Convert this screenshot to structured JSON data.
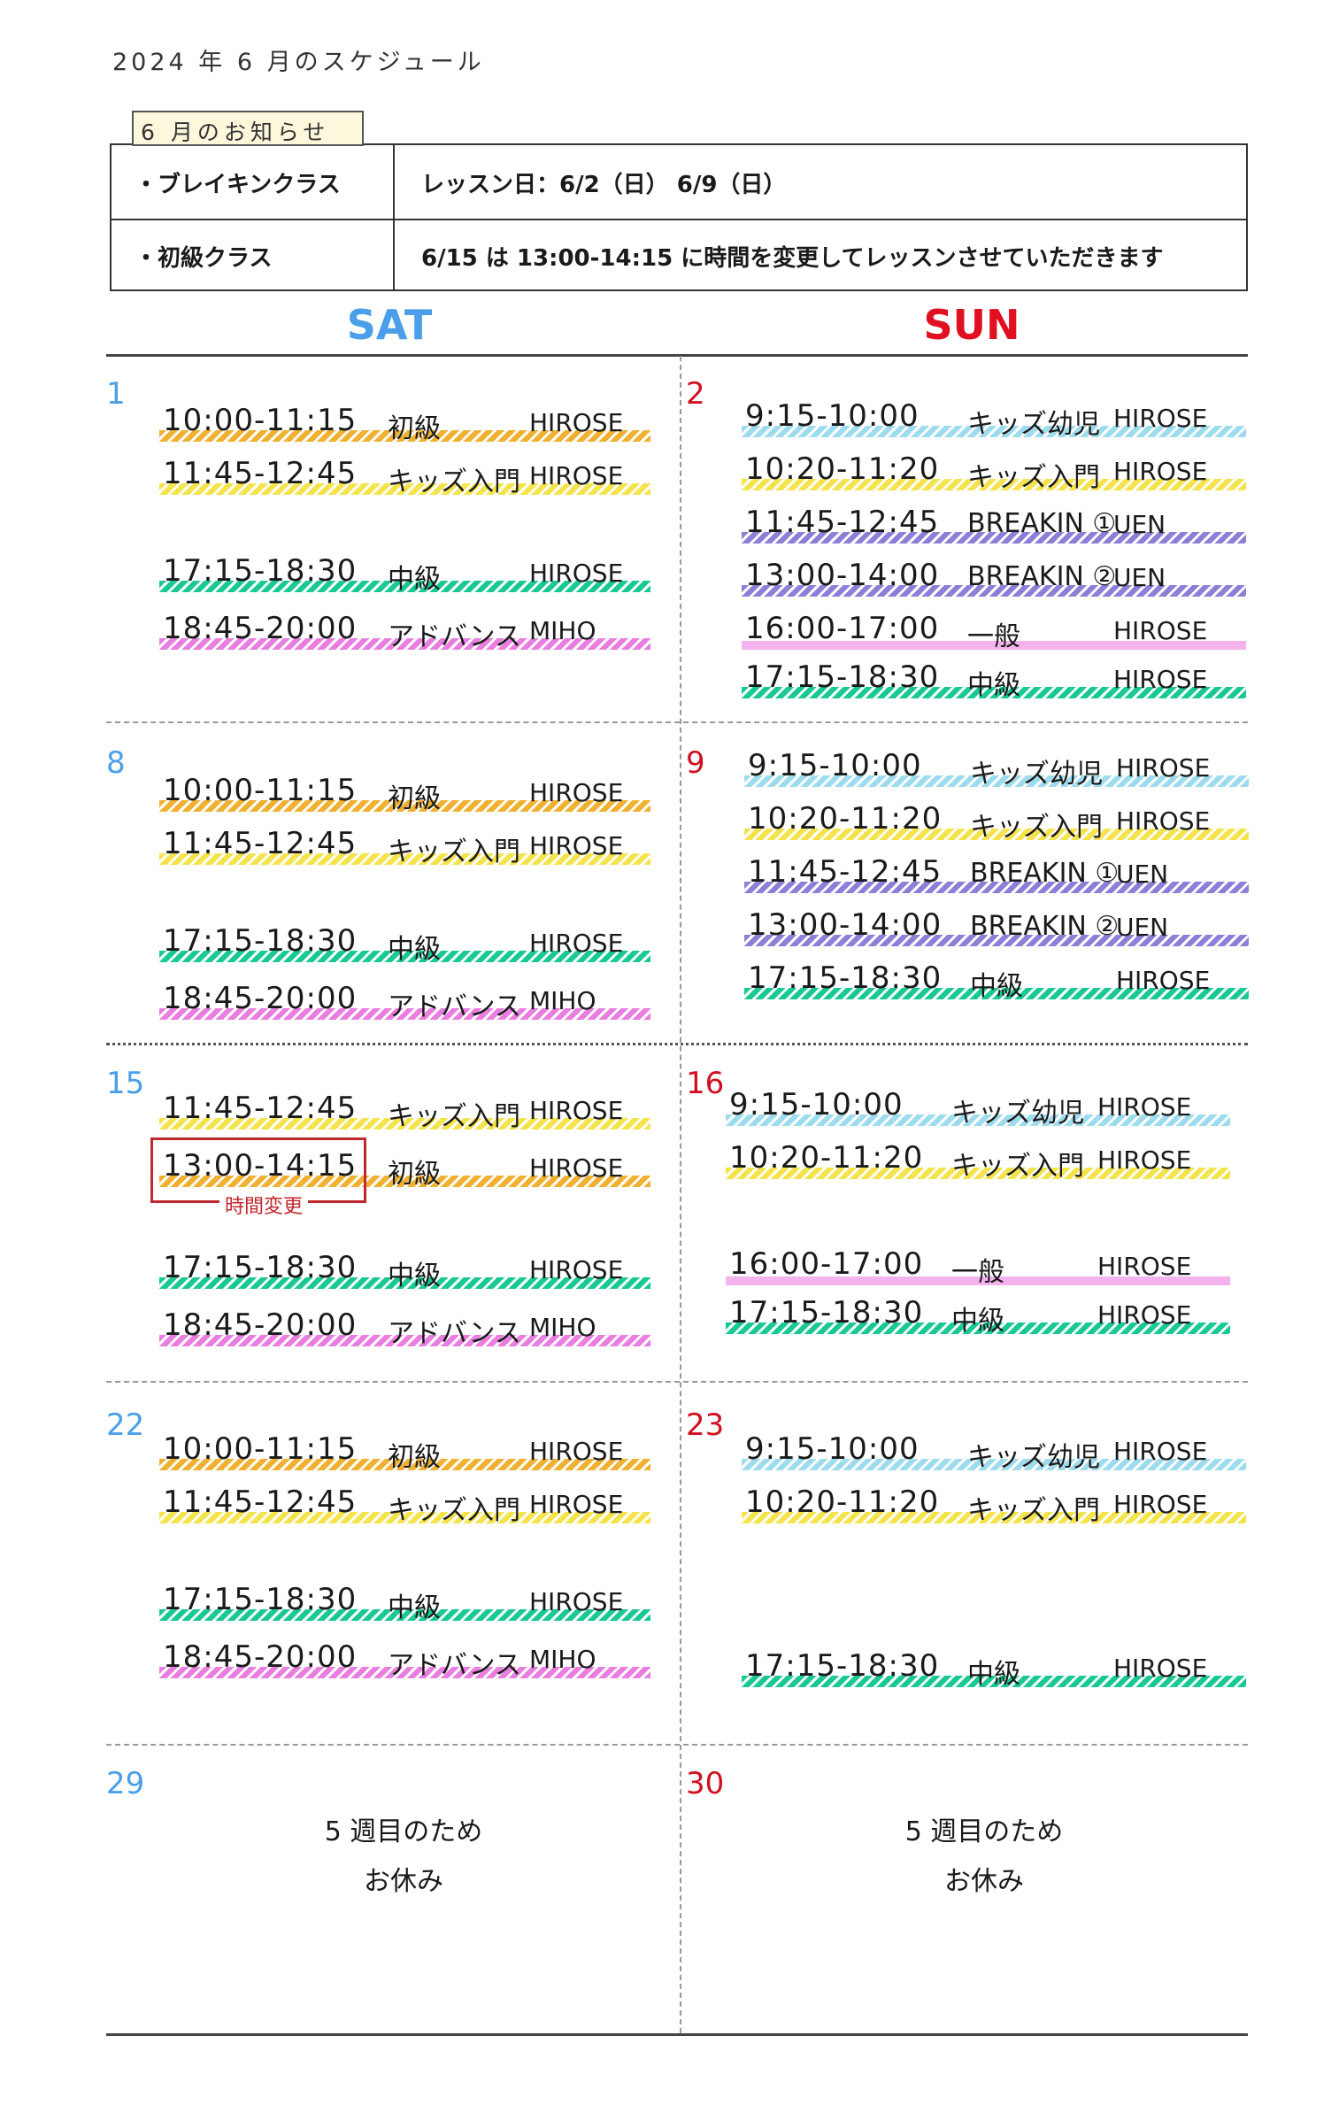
{
  "title": "2024 年 6 月のスケジュール",
  "notice": {
    "tab": "6 月のお知らせ",
    "rows": [
      {
        "label": "・ブレイキンクラス",
        "text": "レッスン日：6/2（日） 6/9（日）"
      },
      {
        "label": "・初級クラス",
        "text": "6/15 は 13:00-14:15 に時間を変更してレッスンさせていただきます"
      }
    ]
  },
  "headers": {
    "sat": "SAT",
    "sun": "SUN"
  },
  "colors": {
    "初級": "#f0b030",
    "キッズ入門": "#f5e34c",
    "中級": "#19c994",
    "アドバンス": "#e97de0",
    "キッズ幼児": "#9ddcef",
    "BREAKIN": "#8b7fd8",
    "一般": "#f2a6ec",
    "sat": "#4a9fe8",
    "sun": "#e01020",
    "change": "#c0282d"
  },
  "change_note": "時間変更",
  "weeks": [
    {
      "sat": {
        "day": "1",
        "lessons": [
          {
            "time": "10:00-11:15",
            "cls": "初級",
            "instructor": "HIROSE"
          },
          {
            "time": "11:45-12:45",
            "cls": "キッズ入門",
            "instructor": "HIROSE"
          },
          {
            "time": "17:15-18:30",
            "cls": "中級",
            "instructor": "HIROSE"
          },
          {
            "time": "18:45-20:00",
            "cls": "アドバンス",
            "instructor": "MIHO"
          }
        ]
      },
      "sun": {
        "day": "2",
        "lessons": [
          {
            "time": "9:15-10:00",
            "cls": "キッズ幼児",
            "instructor": "HIROSE"
          },
          {
            "time": "10:20-11:20",
            "cls": "キッズ入門",
            "instructor": "HIROSE"
          },
          {
            "time": "11:45-12:45",
            "cls": "BREAKIN ①",
            "instructor": "UEN"
          },
          {
            "time": "13:00-14:00",
            "cls": "BREAKIN ②",
            "instructor": "UEN"
          },
          {
            "time": "16:00-17:00",
            "cls": "一般",
            "instructor": "HIROSE"
          },
          {
            "time": "17:15-18:30",
            "cls": "中級",
            "instructor": "HIROSE"
          }
        ]
      }
    },
    {
      "sat": {
        "day": "8",
        "lessons": [
          {
            "time": "10:00-11:15",
            "cls": "初級",
            "instructor": "HIROSE"
          },
          {
            "time": "11:45-12:45",
            "cls": "キッズ入門",
            "instructor": "HIROSE"
          },
          {
            "time": "17:15-18:30",
            "cls": "中級",
            "instructor": "HIROSE"
          },
          {
            "time": "18:45-20:00",
            "cls": "アドバンス",
            "instructor": "MIHO"
          }
        ]
      },
      "sun": {
        "day": "9",
        "lessons": [
          {
            "time": "9:15-10:00",
            "cls": "キッズ幼児",
            "instructor": "HIROSE"
          },
          {
            "time": "10:20-11:20",
            "cls": "キッズ入門",
            "instructor": "HIROSE"
          },
          {
            "time": "11:45-12:45",
            "cls": "BREAKIN ①",
            "instructor": "UEN"
          },
          {
            "time": "13:00-14:00",
            "cls": "BREAKIN ②",
            "instructor": "UEN"
          },
          {
            "time": "17:15-18:30",
            "cls": "中級",
            "instructor": "HIROSE"
          }
        ]
      }
    },
    {
      "sat": {
        "day": "15",
        "lessons": [
          {
            "time": "11:45-12:45",
            "cls": "キッズ入門",
            "instructor": "HIROSE"
          },
          {
            "time": "13:00-14:15",
            "cls": "初級",
            "instructor": "HIROSE"
          },
          {
            "time": "17:15-18:30",
            "cls": "中級",
            "instructor": "HIROSE"
          },
          {
            "time": "18:45-20:00",
            "cls": "アドバンス",
            "instructor": "MIHO"
          }
        ]
      },
      "sun": {
        "day": "16",
        "lessons": [
          {
            "time": "9:15-10:00",
            "cls": "キッズ幼児",
            "instructor": "HIROSE"
          },
          {
            "time": "10:20-11:20",
            "cls": "キッズ入門",
            "instructor": "HIROSE"
          },
          {
            "time": "16:00-17:00",
            "cls": "一般",
            "instructor": "HIROSE"
          },
          {
            "time": "17:15-18:30",
            "cls": "中級",
            "instructor": "HIROSE"
          }
        ]
      }
    },
    {
      "sat": {
        "day": "22",
        "lessons": [
          {
            "time": "10:00-11:15",
            "cls": "初級",
            "instructor": "HIROSE"
          },
          {
            "time": "11:45-12:45",
            "cls": "キッズ入門",
            "instructor": "HIROSE"
          },
          {
            "time": "17:15-18:30",
            "cls": "中級",
            "instructor": "HIROSE"
          },
          {
            "time": "18:45-20:00",
            "cls": "アドバンス",
            "instructor": "MIHO"
          }
        ]
      },
      "sun": {
        "day": "23",
        "lessons": [
          {
            "time": "9:15-10:00",
            "cls": "キッズ幼児",
            "instructor": "HIROSE"
          },
          {
            "time": "10:20-11:20",
            "cls": "キッズ入門",
            "instructor": "HIROSE"
          },
          {
            "time": "17:15-18:30",
            "cls": "中級",
            "instructor": "HIROSE"
          }
        ]
      }
    },
    {
      "sat": {
        "day": "29",
        "closed": [
          "5 週目のため",
          "お休み"
        ]
      },
      "sun": {
        "day": "30",
        "closed": [
          "5 週目のため",
          "お休み"
        ]
      }
    }
  ]
}
